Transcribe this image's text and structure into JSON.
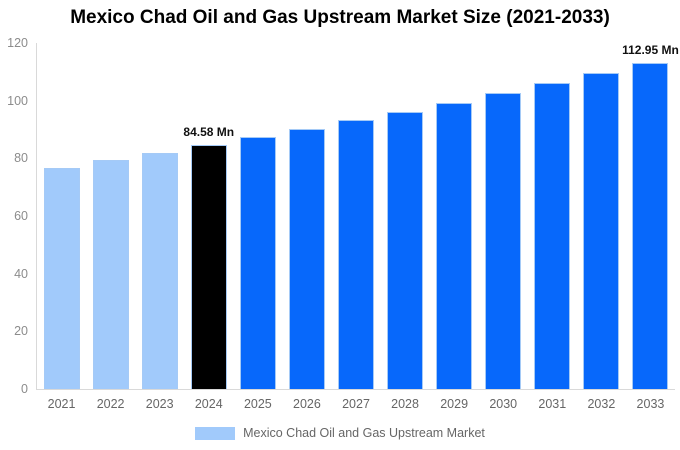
{
  "title": "Mexico Chad Oil and Gas Upstream Market Size (2021-2033)",
  "colors": {
    "historic_bar": "#a1cafb",
    "highlight_bar": "#000000",
    "forecast_bar": "#0768fb",
    "bar_border": "#a5caf6",
    "axis_line": "#d9d9d9",
    "tick_text": "#8c8c8c",
    "axis_label_text": "#666666",
    "annotation_text": "#111111"
  },
  "chart_data": {
    "type": "bar",
    "title": "Mexico Chad Oil and Gas Upstream Market Size (2021-2033)",
    "xlabel": "",
    "ylabel": "",
    "unit": "Mn",
    "categories": [
      "2021",
      "2022",
      "2023",
      "2024",
      "2025",
      "2026",
      "2027",
      "2028",
      "2029",
      "2030",
      "2031",
      "2032",
      "2033"
    ],
    "series": [
      {
        "name": "Mexico Chad Oil and Gas Upstream Market",
        "values": [
          76.8,
          79.35,
          81.9,
          84.58,
          87.35,
          90.21,
          93.16,
          96.21,
          99.36,
          102.61,
          105.97,
          109.44,
          112.95
        ]
      }
    ],
    "bar_colors": [
      "#a1cafb",
      "#a1cafb",
      "#a1cafb",
      "#000000",
      "#0768fb",
      "#0768fb",
      "#0768fb",
      "#0768fb",
      "#0768fb",
      "#0768fb",
      "#0768fb",
      "#0768fb",
      "#0768fb"
    ],
    "ylim": [
      0,
      120
    ],
    "yticks": [
      0,
      20,
      40,
      60,
      80,
      100,
      120
    ],
    "grid": false,
    "legend_position": "bottom",
    "annotations": [
      {
        "category": "2024",
        "text": "84.58 Mn"
      },
      {
        "category": "2033",
        "text": "112.95 Mn"
      }
    ]
  },
  "legend": {
    "label": "Mexico Chad Oil and Gas Upstream Market",
    "swatch_color": "#a1cafb"
  }
}
